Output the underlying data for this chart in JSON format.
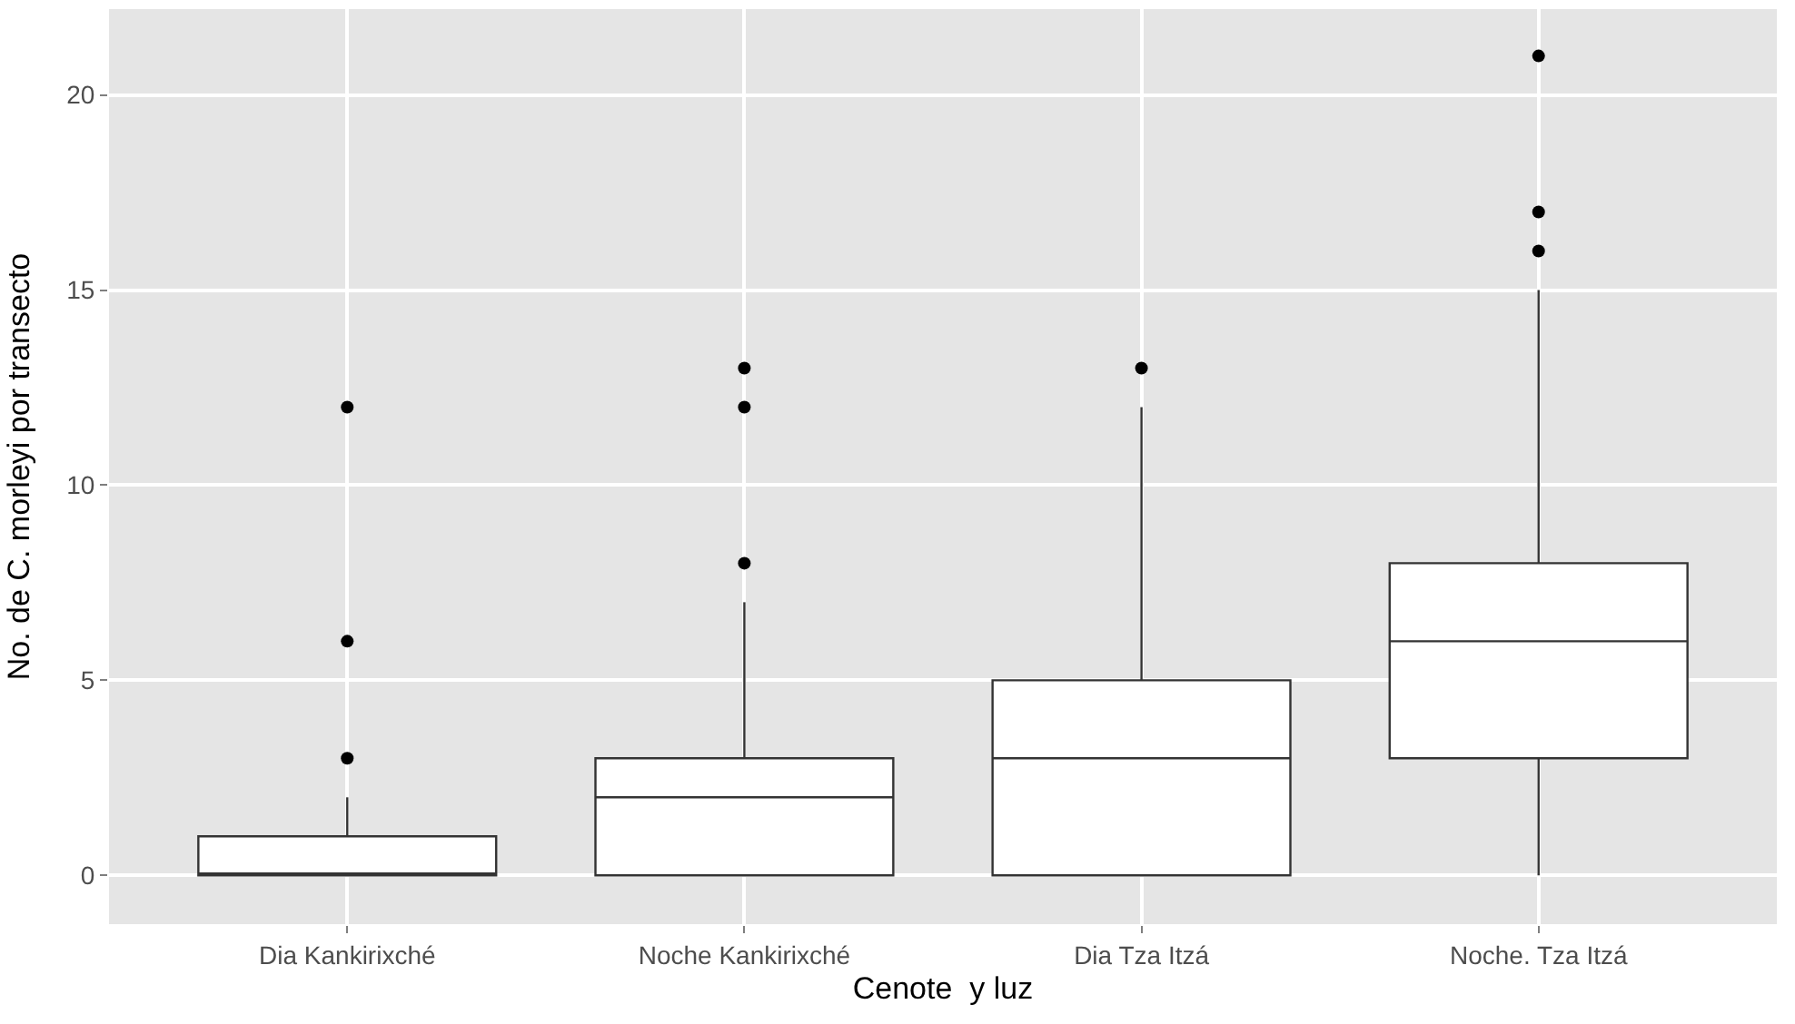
{
  "chart_data": {
    "type": "box",
    "xlabel": "Cenote  y luz",
    "ylabel": "No. de C. morleyi por transecto",
    "categories": [
      "Dia Kankirixché",
      "Noche Kankirixché",
      "Dia Tza Itzá",
      "Noche. Tza Itzá"
    ],
    "boxes": [
      {
        "low": 0,
        "q1": 0,
        "median": 0,
        "q3": 1,
        "high": 2,
        "outliers": [
          3,
          6,
          12
        ]
      },
      {
        "low": 0,
        "q1": 0,
        "median": 2,
        "q3": 3,
        "high": 7,
        "outliers": [
          8,
          12,
          13
        ]
      },
      {
        "low": 0,
        "q1": 0,
        "median": 3,
        "q3": 5,
        "high": 12,
        "outliers": [
          13
        ]
      },
      {
        "low": 0,
        "q1": 3,
        "median": 6,
        "q3": 8,
        "high": 15,
        "outliers": [
          16,
          17,
          21
        ]
      }
    ],
    "color": "#333333",
    "ylim": [
      -1.25,
      22.2
    ],
    "yticks": [
      0,
      5,
      10,
      15,
      20
    ],
    "grid": true
  }
}
